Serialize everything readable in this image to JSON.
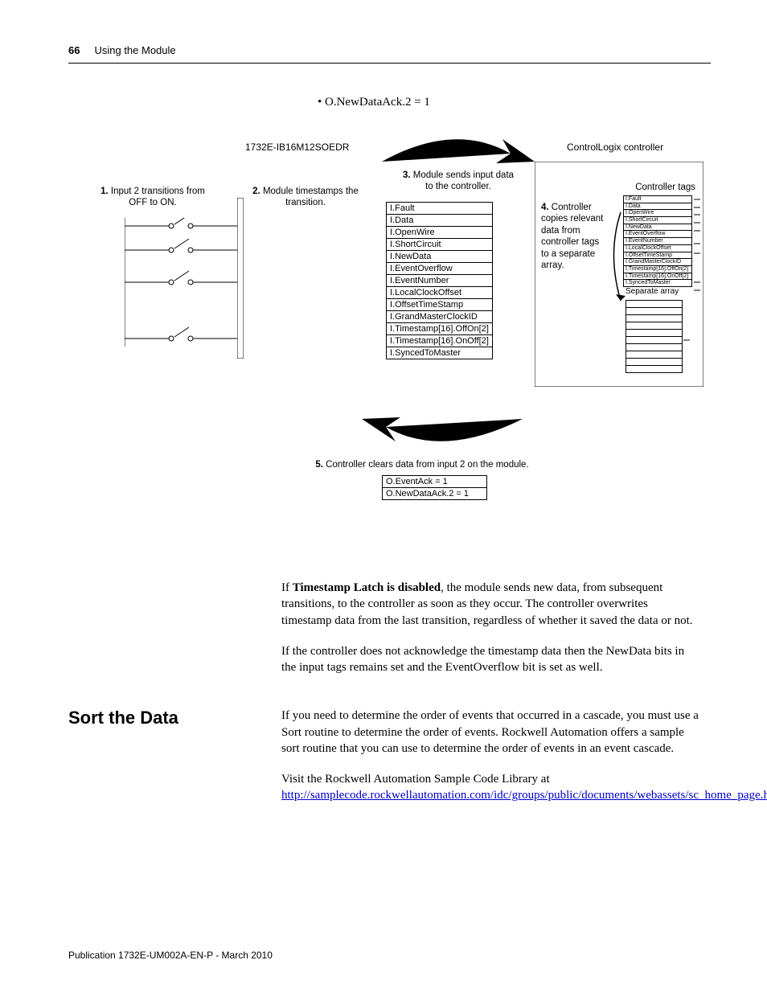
{
  "header": {
    "page_num": "66",
    "chapter": "Using the Module"
  },
  "bullet": "• O.NewDataAck.2 = 1",
  "diagram": {
    "module_name": "1732E-IB16M12SOEDR",
    "controller_name": "ControlLogix controller",
    "step1": {
      "n": "1.",
      "t": "Input 2 transitions from OFF to ON."
    },
    "step2": {
      "n": "2.",
      "t": "Module timestamps the transition."
    },
    "step3": {
      "n": "3.",
      "t": "Module sends input data to the controller."
    },
    "step4": {
      "n": "4.",
      "t": "Controller copies relevant data from controller tags to a separate array."
    },
    "step5": {
      "n": "5.",
      "t": "Controller clears data from input 2 on the module."
    },
    "tags_label": "Controller tags",
    "sep_label": "Separate array",
    "input_tags": [
      "I.Fault",
      "I.Data",
      "I.OpenWire",
      "I.ShortCircuit",
      "I.NewData",
      "I.EventOverflow",
      "I.EventNumber",
      "I.LocalClockOffset",
      "I.OffsetTimeStamp",
      "I.GrandMasterClockID",
      "I.Timestamp[16].OffOn[2]",
      "I.Timestamp[16].OnOff[2]",
      "I.SyncedToMaster"
    ],
    "tiny_tags": [
      "I.Fault",
      "I.Data",
      "I.OpenWire",
      "I.ShortCircuit",
      "I.NewData",
      "I.EventOverflow",
      "I.EventNumber",
      "I.LocalClockOffset",
      "I.OffsetTimeStamp",
      "I.GrandMasterClockID",
      "I.Timestamp[16].OffOn[2]",
      "I.Timestamp[16].OnOff[2]",
      "I.SyncedToMaster"
    ],
    "clear_tags": [
      "O.EventAck = 1",
      "O.NewDataAck.2 = 1"
    ]
  },
  "para1_a": "If ",
  "para1_b": "Timestamp Latch is disabled",
  "para1_c": ", the module sends new data, from subsequent transitions, to the controller as soon as they occur. The controller overwrites timestamp data from the last transition, regardless of whether it saved the data or not.",
  "para2": "If the controller does not acknowledge the timestamp data then the NewData bits in the input tags remains set and the EventOverflow bit is set as well.",
  "section_title": "Sort the Data",
  "para3": "If you need to determine the order of events that occurred in a cascade, you must use a Sort routine to determine the order of events. Rockwell Automation offers a sample sort routine that you can use to determine the order of events in an event cascade.",
  "para4_a": "Visit the Rockwell Automation Sample Code Library at ",
  "link": "http://samplecode.rockwellautomation.com/idc/groups/public/documents/webassets/sc_home_page.hcst.",
  "footer": "Publication 1732E-UM002A-EN-P - March 2010"
}
